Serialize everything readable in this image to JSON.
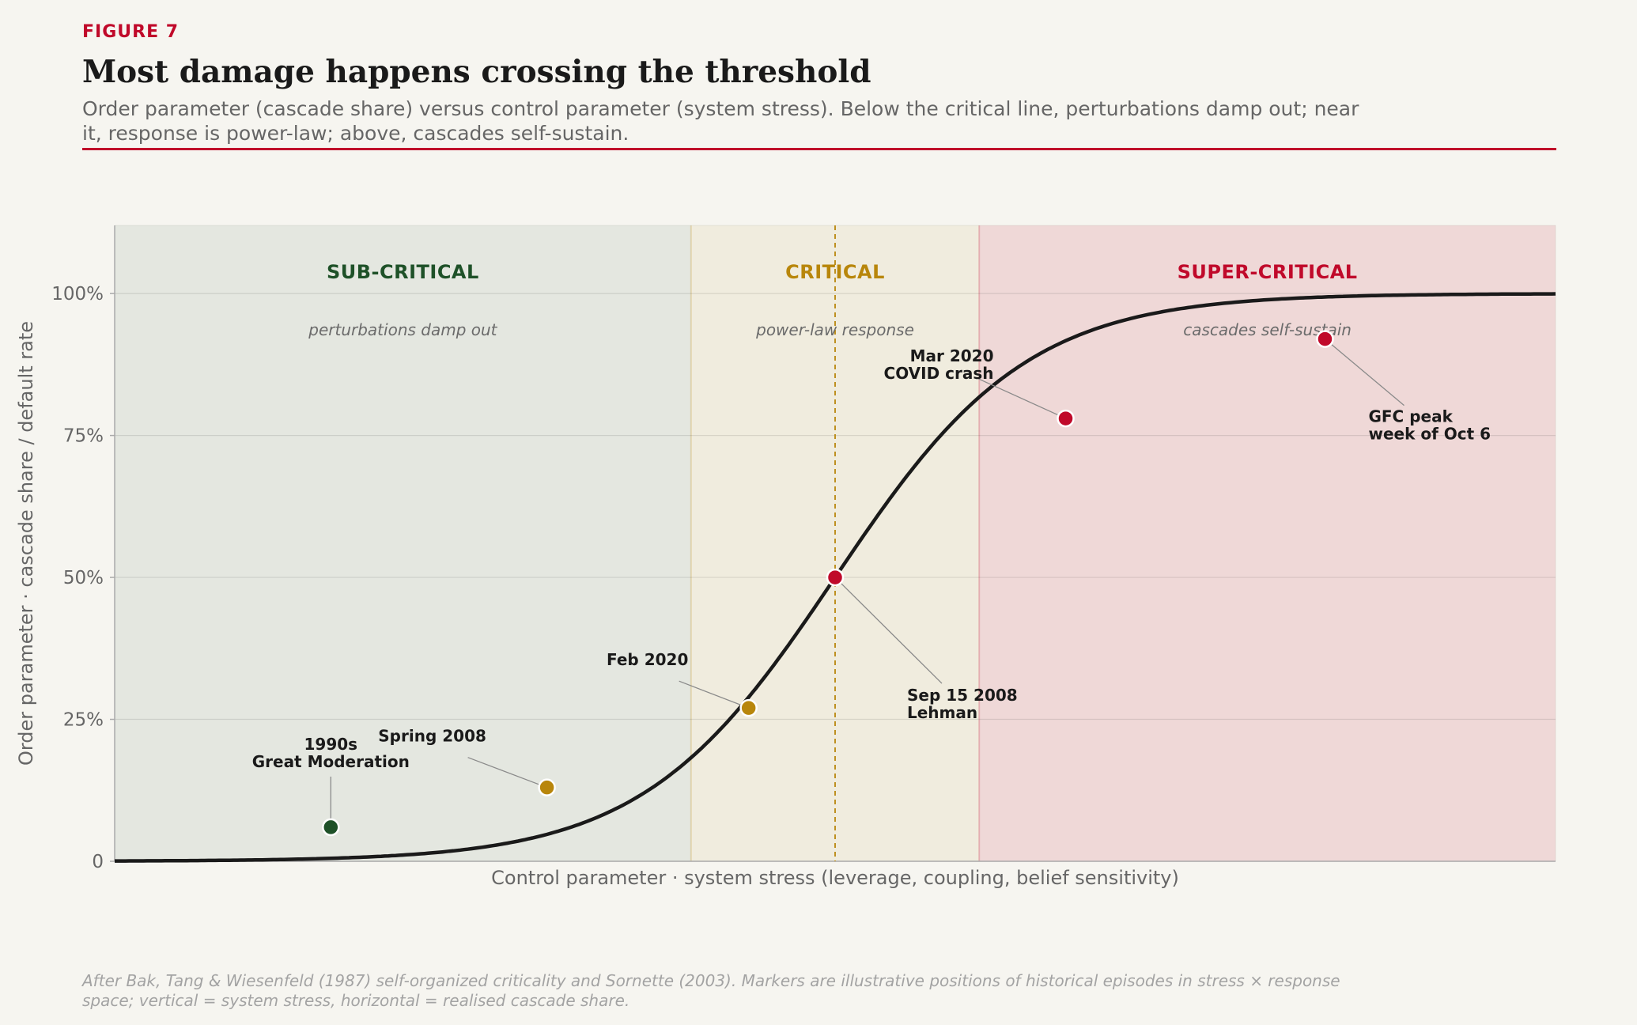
{
  "header": {
    "figure_label": "FIGURE 7",
    "title": "Most damage happens crossing the threshold",
    "subtitle": "Order parameter (cascade share) versus control parameter (system stress). Below the critical line, perturbations damp out; near it, response is power-law; above, cascades self-sustain."
  },
  "caption": "After Bak, Tang & Wiesenfeld (1987) self-organized criticality and Sornette (2003). Markers are illustrative positions of historical episodes in stress × response space; vertical = system stress, horizontal = realised cascade share.",
  "colors": {
    "accent": "#c0092a",
    "subcritical": "#1e5128",
    "critical": "#b8860b",
    "supercritical": "#c0092a",
    "curve": "#1a1a1a"
  },
  "chart_data": {
    "type": "line",
    "xlabel": "Control parameter · system stress (leverage, coupling, belief sensitivity)",
    "ylabel": "Order parameter · cascade share / default rate",
    "xlim": [
      0,
      1
    ],
    "ylim": [
      0,
      1.12
    ],
    "y_ticks": [
      0,
      0.25,
      0.5,
      0.75,
      1.0
    ],
    "y_tick_labels": [
      "0",
      "25%",
      "50%",
      "75%",
      "100%"
    ],
    "grid": true,
    "critical_point": 0.5,
    "curve": {
      "name": "",
      "x": [
        0,
        0.1,
        0.2,
        0.25,
        0.3,
        0.35,
        0.4,
        0.45,
        0.5,
        0.55,
        0.6,
        0.65,
        0.7,
        0.8,
        0.9,
        1.0
      ],
      "y": [
        0.0,
        0.005,
        0.016,
        0.031,
        0.061,
        0.115,
        0.201,
        0.332,
        0.5,
        0.668,
        0.799,
        0.885,
        0.939,
        0.984,
        0.995,
        1.0
      ]
    },
    "regions": [
      {
        "name": "SUB-CRITICAL",
        "note": "perturbations damp out",
        "x_range": [
          0,
          0.4
        ],
        "color": "#1e5128"
      },
      {
        "name": "CRITICAL",
        "note": "power-law response",
        "x_range": [
          0.4,
          0.6
        ],
        "color": "#b8860b"
      },
      {
        "name": "SUPER-CRITICAL",
        "note": "cascades self-sustain",
        "x_range": [
          0.6,
          1.0
        ],
        "color": "#c0092a"
      }
    ],
    "points": [
      {
        "label": [
          "1990s",
          "Great Moderation"
        ],
        "x": 0.15,
        "y": 0.06,
        "color": "#1e5128"
      },
      {
        "label": [
          "Spring 2008"
        ],
        "x": 0.3,
        "y": 0.13,
        "color": "#b8860b"
      },
      {
        "label": [
          "Feb 2020"
        ],
        "x": 0.44,
        "y": 0.27,
        "color": "#b8860b"
      },
      {
        "label": [
          "Sep 15 2008",
          "Lehman"
        ],
        "x": 0.5,
        "y": 0.5,
        "color": "#c0092a"
      },
      {
        "label": [
          "Mar 2020",
          "COVID crash"
        ],
        "x": 0.66,
        "y": 0.78,
        "color": "#c0092a"
      },
      {
        "label": [
          "GFC peak",
          "week of Oct 6"
        ],
        "x": 0.84,
        "y": 0.92,
        "color": "#c0092a"
      }
    ]
  }
}
